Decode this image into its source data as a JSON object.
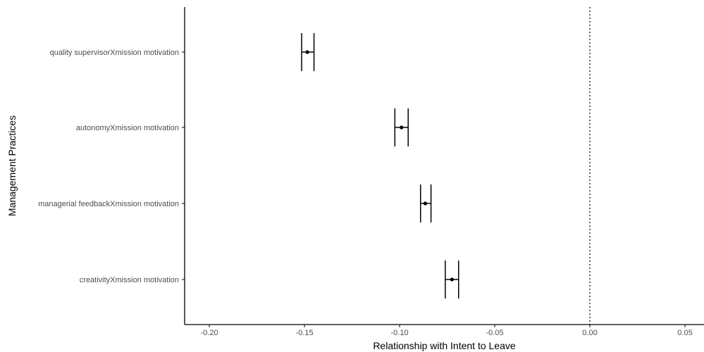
{
  "chart_data": {
    "type": "forest",
    "title": "",
    "xlabel": "Relationship with Intent to Leave",
    "ylabel": "Management Practices",
    "xlim": [
      -0.213,
      0.06
    ],
    "xticks": [
      -0.2,
      -0.15,
      -0.1,
      -0.05,
      0.0,
      0.05
    ],
    "xtick_labels": [
      "-0.20",
      "-0.15",
      "-0.10",
      "-0.05",
      "0.00",
      "0.05"
    ],
    "reference_line": 0.0,
    "grid": false,
    "points": [
      {
        "label": "quality supervisorXmission motivation",
        "estimate": -0.1485,
        "ci_low": -0.1515,
        "ci_high": -0.145
      },
      {
        "label": "autonomyXmission motivation",
        "estimate": -0.099,
        "ci_low": -0.1025,
        "ci_high": -0.0955
      },
      {
        "label": "managerial feedbackXmission motivation",
        "estimate": -0.0865,
        "ci_low": -0.089,
        "ci_high": -0.0835
      },
      {
        "label": "creativityXmission motivation",
        "estimate": -0.0725,
        "ci_low": -0.076,
        "ci_high": -0.069
      }
    ]
  },
  "colors": {
    "point": "#000000",
    "axis": "#000000",
    "reference_line": "#000000"
  }
}
